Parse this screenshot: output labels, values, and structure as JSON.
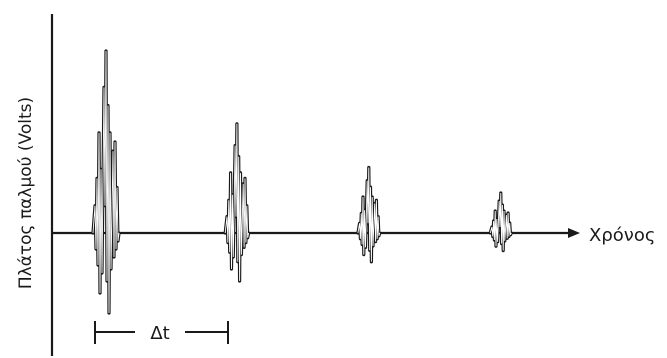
{
  "figure": {
    "y_axis_label": "Πλάτος παλμού (Volts)",
    "x_axis_label": "Χρόνος",
    "interval_label": "Δt"
  },
  "pulse_echoes": [
    {
      "name": "echo-1",
      "relative_amplitude": 1.0
    },
    {
      "name": "echo-2",
      "relative_amplitude": 0.6
    },
    {
      "name": "echo-3",
      "relative_amplitude": 0.36
    },
    {
      "name": "echo-4",
      "relative_amplitude": 0.22
    }
  ]
}
